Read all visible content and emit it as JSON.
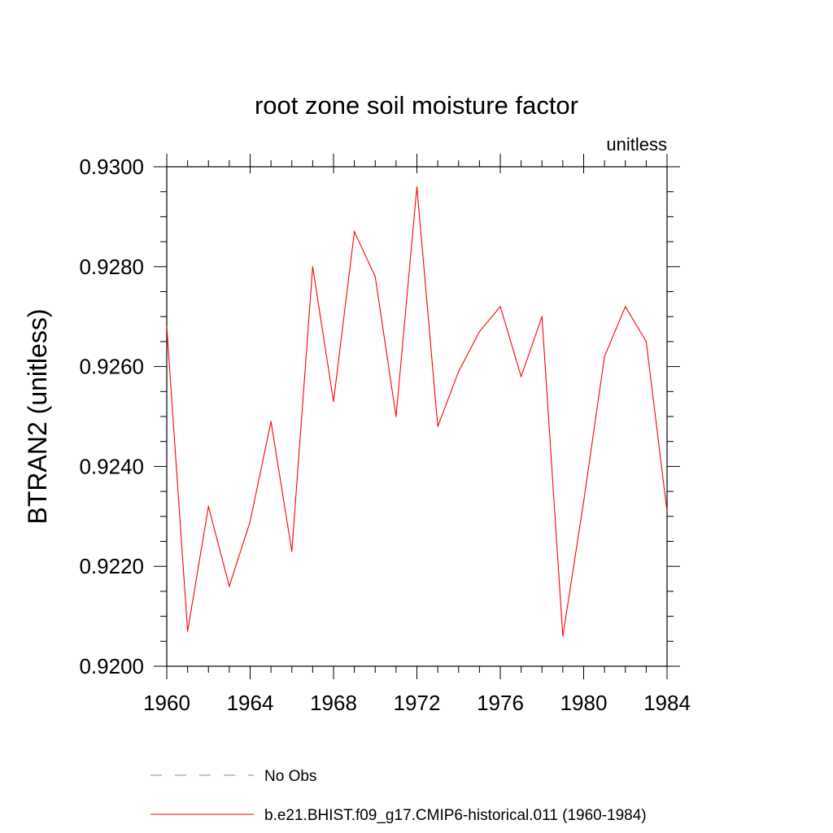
{
  "chart_data": {
    "type": "line",
    "title": "root zone soil moisture factor",
    "units": "unitless",
    "ylabel": "BTRAN2  (unitless)",
    "xlabel": "",
    "xlim": [
      1960,
      1984
    ],
    "ylim": [
      0.92,
      0.93
    ],
    "x_ticks": [
      "1960",
      "1964",
      "1968",
      "1972",
      "1976",
      "1980",
      "1984"
    ],
    "x_tick_values": [
      1960,
      1964,
      1968,
      1972,
      1976,
      1980,
      1984
    ],
    "y_ticks": [
      "0.9200",
      "0.9220",
      "0.9240",
      "0.9260",
      "0.9280",
      "0.9300"
    ],
    "y_tick_values": [
      0.92,
      0.922,
      0.924,
      0.926,
      0.928,
      0.93
    ],
    "grid": false,
    "legend_position": "bottom",
    "series": [
      {
        "name": "b.e21.BHIST.f09_g17.CMIP6-historical.011 (1960-1984)",
        "color": "#ff0000",
        "style": "solid",
        "x": [
          1960,
          1961,
          1962,
          1963,
          1964,
          1965,
          1966,
          1967,
          1968,
          1969,
          1970,
          1971,
          1972,
          1973,
          1974,
          1975,
          1976,
          1977,
          1978,
          1979,
          1980,
          1981,
          1982,
          1983,
          1984
        ],
        "values": [
          0.9268,
          0.9207,
          0.9232,
          0.9216,
          0.9229,
          0.9249,
          0.9223,
          0.928,
          0.9253,
          0.9287,
          0.9278,
          0.925,
          0.9296,
          0.9248,
          0.9259,
          0.9267,
          0.9272,
          0.9258,
          0.927,
          0.9206,
          0.9233,
          0.9262,
          0.9272,
          0.9265,
          0.9231
        ]
      }
    ],
    "legend": [
      {
        "label": "No Obs",
        "color": "#8080c0",
        "style": "dashed"
      },
      {
        "label": "b.e21.BHIST.f09_g17.CMIP6-historical.011 (1960-1984)",
        "color": "#ff0000",
        "style": "solid"
      }
    ]
  }
}
